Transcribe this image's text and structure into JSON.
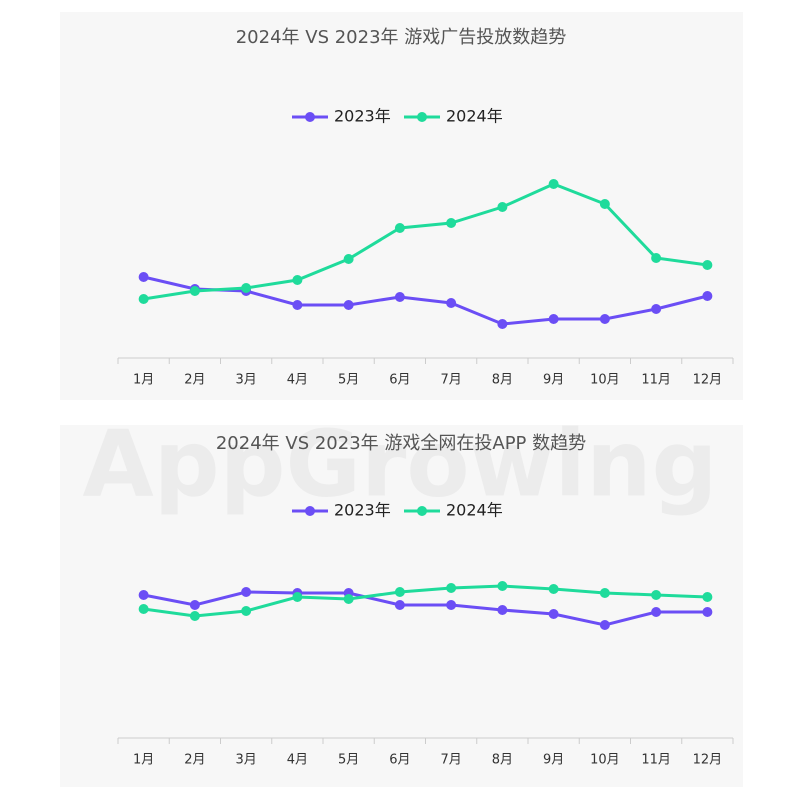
{
  "watermark": "AppGrowing",
  "chart_data": [
    {
      "type": "line",
      "title": "2024年 VS 2023年 游戏广告投放数趋势",
      "categories": [
        "1月",
        "2月",
        "3月",
        "4月",
        "5月",
        "6月",
        "7月",
        "8月",
        "9月",
        "10月",
        "11月",
        "12月"
      ],
      "series": [
        {
          "name": "2023年",
          "color": "#6b4ef5",
          "values": [
            81,
            69,
            67,
            53,
            53,
            61,
            55,
            34,
            39,
            39,
            49,
            62
          ]
        },
        {
          "name": "2024年",
          "color": "#1fdb9b",
          "values": [
            59,
            67,
            70,
            78,
            99,
            130,
            135,
            151,
            174,
            154,
            100,
            93
          ]
        }
      ],
      "ylim": [
        0,
        250
      ],
      "legend": "top"
    },
    {
      "type": "line",
      "title": "2024年 VS 2023年 游戏全网在投APP 数趋势",
      "categories": [
        "1月",
        "2月",
        "3月",
        "4月",
        "5月",
        "6月",
        "7月",
        "8月",
        "9月",
        "10月",
        "11月",
        "12月"
      ],
      "series": [
        {
          "name": "2023年",
          "color": "#6b4ef5",
          "values": [
            143,
            133,
            146,
            145,
            145,
            133,
            133,
            128,
            124,
            113,
            126,
            126
          ]
        },
        {
          "name": "2024年",
          "color": "#1fdb9b",
          "values": [
            129,
            122,
            127,
            141,
            139,
            146,
            150,
            152,
            149,
            145,
            143,
            141
          ]
        }
      ],
      "ylim": [
        0,
        250
      ],
      "legend": "top"
    }
  ]
}
